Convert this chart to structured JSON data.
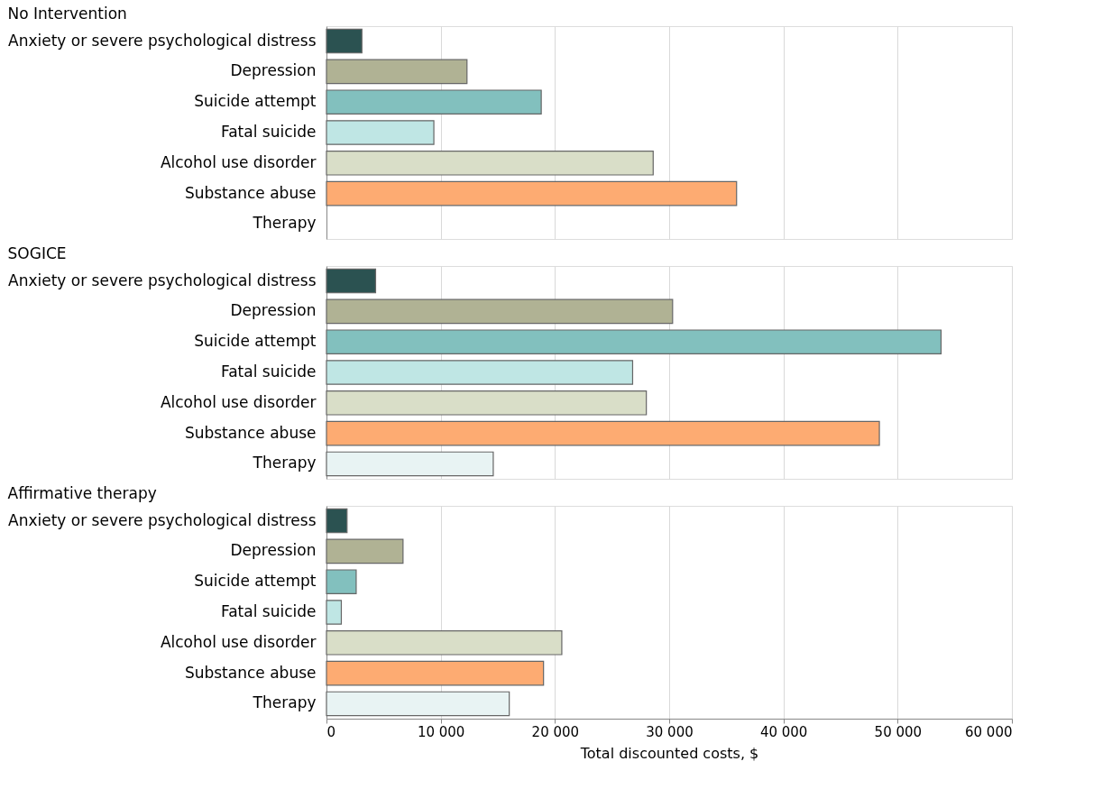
{
  "chart_data": [
    {
      "type": "bar",
      "orientation": "horizontal",
      "title": "No Intervention",
      "categories": [
        "Anxiety or severe psychological distress",
        "Depression",
        "Suicide attempt",
        "Fatal suicide",
        "Alcohol use disorder",
        "Substance abuse",
        "Therapy"
      ],
      "values": [
        3100,
        12300,
        18800,
        9400,
        28600,
        35900,
        null
      ],
      "colors": [
        "#2b5251",
        "#b0b294",
        "#82c0be",
        "#bfe6e4",
        "#d9dec8",
        "#fdab72",
        "#e8f3f3"
      ],
      "xlim": [
        0,
        60000
      ],
      "xticks": [
        {
          "value": 10000,
          "label": null
        },
        {
          "value": 20000,
          "label": null
        },
        {
          "value": 30000,
          "label": null
        },
        {
          "value": 40000,
          "label": null
        },
        {
          "value": 50000,
          "label": null
        },
        {
          "value": 60000,
          "label": null
        }
      ],
      "grid": "x",
      "tick_labels": "y",
      "legend": false
    },
    {
      "type": "bar",
      "orientation": "horizontal",
      "title": "SOGICE",
      "categories": [
        "Anxiety or severe psychological distress",
        "Depression",
        "Suicide attempt",
        "Fatal suicide",
        "Alcohol use disorder",
        "Substance abuse",
        "Therapy"
      ],
      "values": [
        4300,
        30300,
        53800,
        26800,
        28000,
        48400,
        14600
      ],
      "colors": [
        "#2b5251",
        "#b0b294",
        "#82c0be",
        "#bfe6e4",
        "#d9dec8",
        "#fdab72",
        "#e8f3f3"
      ],
      "xlim": [
        0,
        60000
      ],
      "xticks": [
        {
          "value": 10000,
          "label": null
        },
        {
          "value": 20000,
          "label": null
        },
        {
          "value": 30000,
          "label": null
        },
        {
          "value": 40000,
          "label": null
        },
        {
          "value": 50000,
          "label": null
        },
        {
          "value": 60000,
          "label": null
        }
      ],
      "grid": "x",
      "tick_labels": "y",
      "legend": false
    },
    {
      "type": "bar",
      "orientation": "horizontal",
      "title": "Affirmative therapy",
      "categories": [
        "Anxiety or severe psychological distress",
        "Depression",
        "Suicide attempt",
        "Fatal suicide",
        "Alcohol use disorder",
        "Substance abuse",
        "Therapy"
      ],
      "values": [
        1800,
        6700,
        2600,
        1300,
        20600,
        19000,
        16000
      ],
      "colors": [
        "#2b5251",
        "#b0b294",
        "#82c0be",
        "#bfe6e4",
        "#d9dec8",
        "#fdab72",
        "#e8f3f3"
      ],
      "xlim": [
        0,
        60000
      ],
      "xticks": [
        0,
        {
          "value": 10000,
          "label": "10 000"
        },
        {
          "value": 20000,
          "label": "20 000"
        },
        {
          "value": 30000,
          "label": "30 000"
        },
        {
          "value": 40000,
          "label": "40 000"
        },
        {
          "value": 50000,
          "label": "50 000"
        },
        {
          "value": 60000,
          "label": "60 000"
        }
      ],
      "xlabel": "Total discounted costs, $",
      "grid": "x",
      "legend": false
    }
  ]
}
